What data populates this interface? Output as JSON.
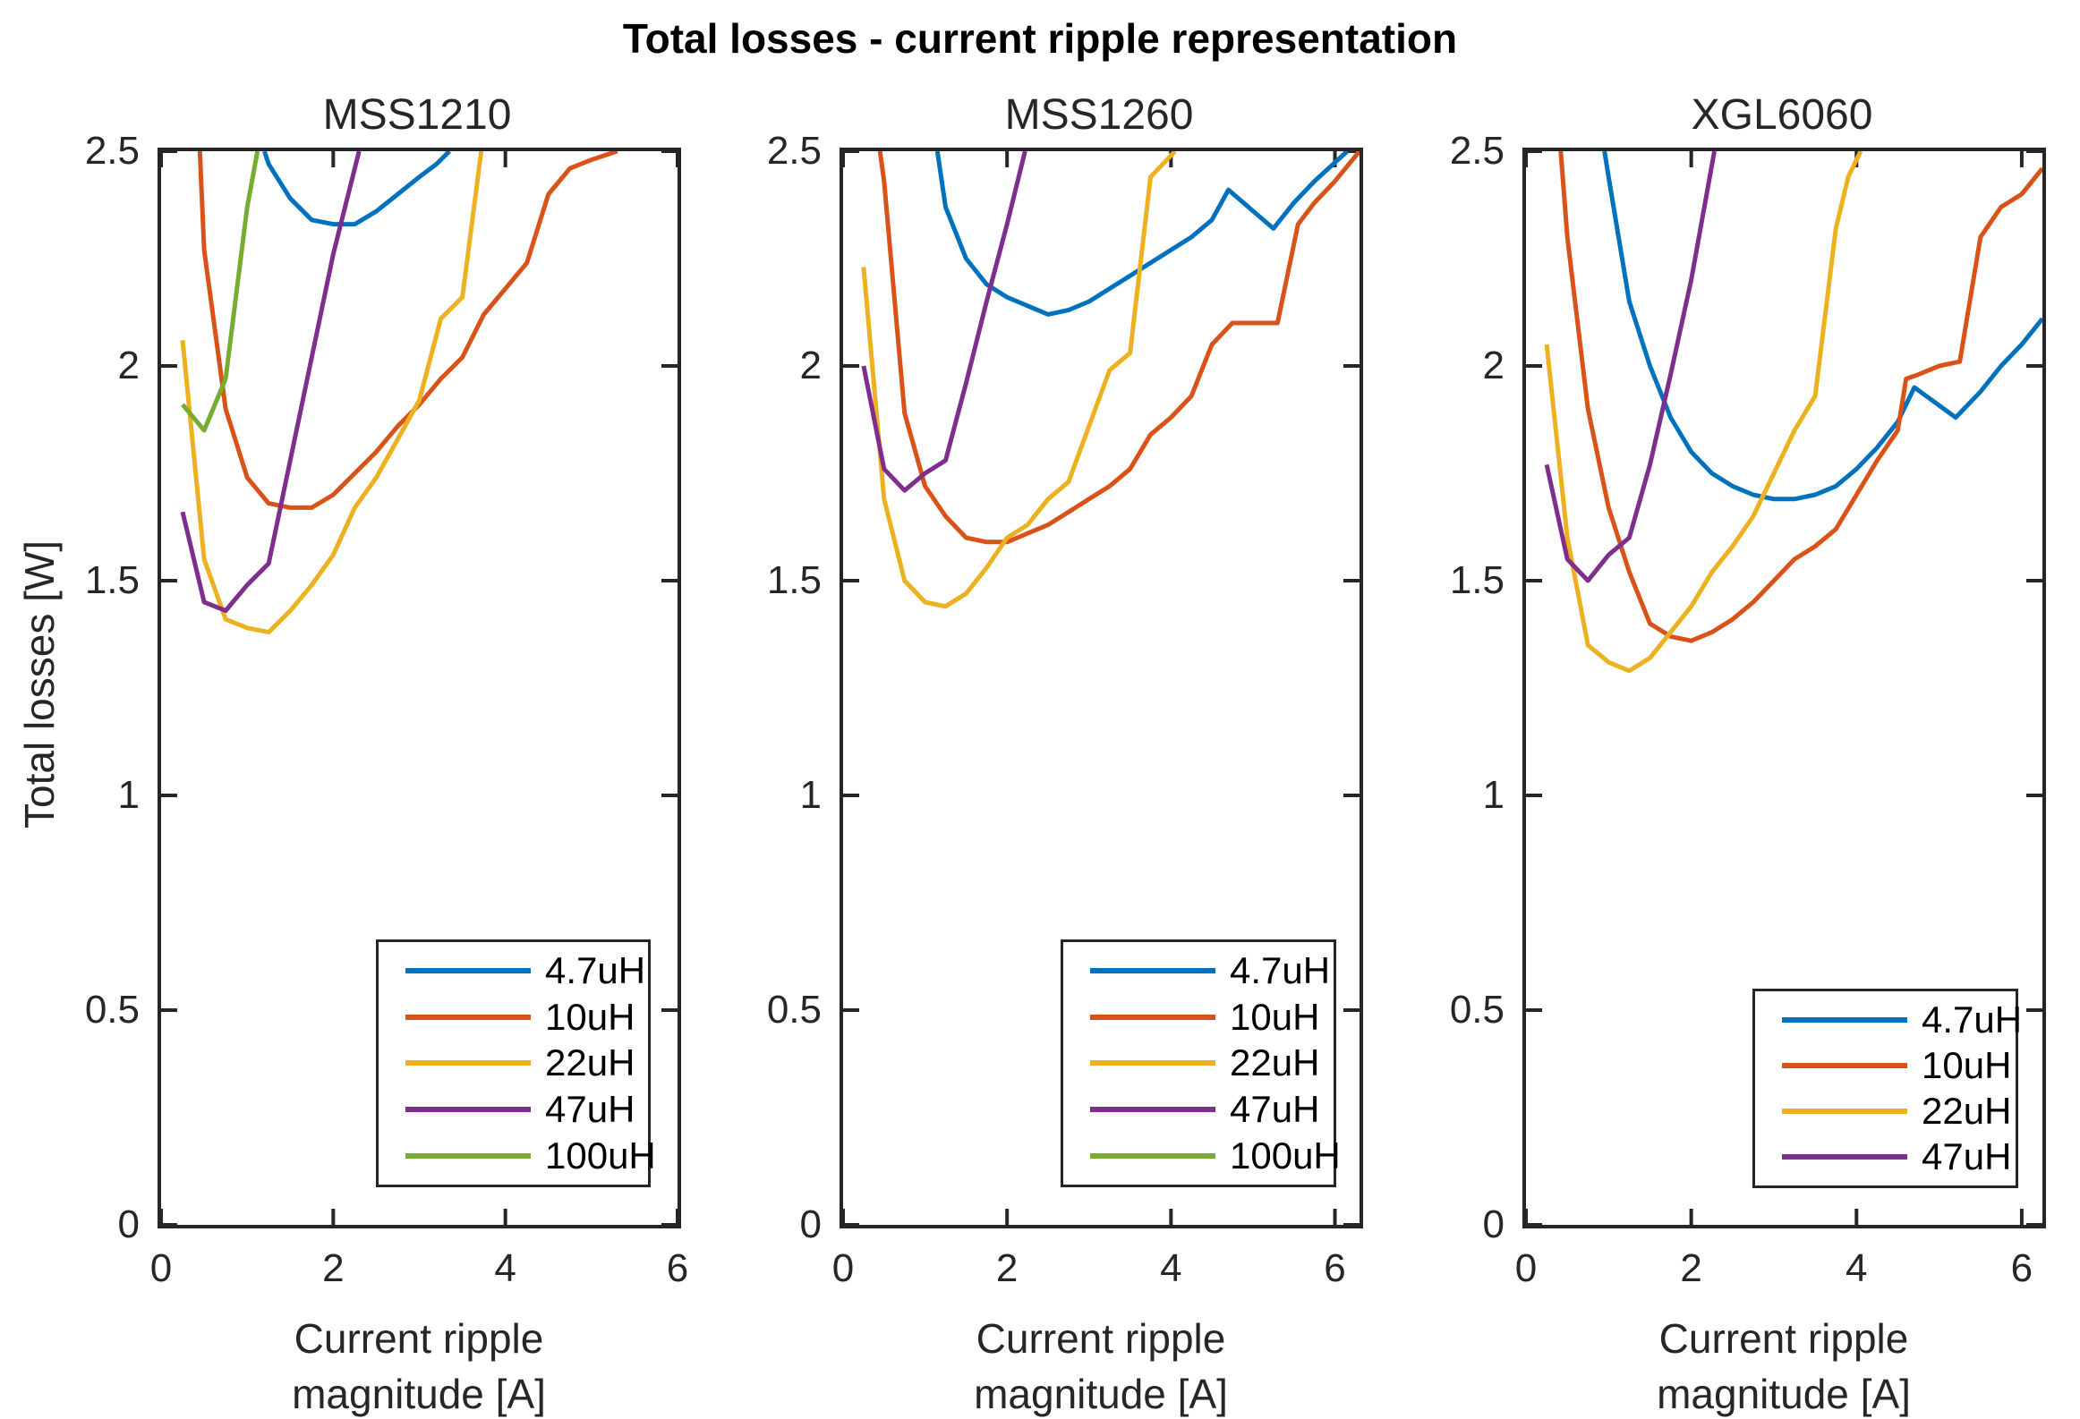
{
  "figure": {
    "title": "Total losses - current ripple representation"
  },
  "axes": {
    "ylabel": "Total losses [W]",
    "xlabel_line1": "Current ripple",
    "xlabel_line2": "magnitude [A]",
    "xticks": [
      [
        0,
        "0"
      ],
      [
        2,
        "2"
      ],
      [
        4,
        "4"
      ],
      [
        6,
        "6"
      ]
    ],
    "yticks": [
      [
        0,
        "0"
      ],
      [
        0.5,
        "0.5"
      ],
      [
        1,
        "1"
      ],
      [
        1.5,
        "1.5"
      ],
      [
        2,
        "2"
      ],
      [
        2.5,
        "2.5"
      ]
    ]
  },
  "colors": {
    "4.7uH": "#0072BD",
    "10uH": "#D95319",
    "22uH": "#EDB120",
    "47uH": "#7E2F8E",
    "100uH": "#77AC30",
    "axis": "#262626"
  },
  "chart_data": [
    {
      "type": "line",
      "title": "MSS1210",
      "xlim": [
        0,
        6
      ],
      "ylim": [
        0,
        2.5
      ],
      "grid": false,
      "legend_position": "lower-right-inside",
      "legend": [
        "4.7uH",
        "10uH",
        "22uH",
        "47uH",
        "100uH"
      ],
      "series": [
        {
          "name": "4.7uH",
          "points": [
            [
              1.2,
              2.5
            ],
            [
              1.25,
              2.47
            ],
            [
              1.5,
              2.39
            ],
            [
              1.75,
              2.34
            ],
            [
              2,
              2.33
            ],
            [
              2.25,
              2.33
            ],
            [
              2.5,
              2.36
            ],
            [
              2.75,
              2.4
            ],
            [
              3,
              2.44
            ],
            [
              3.2,
              2.47
            ],
            [
              3.35,
              2.5
            ]
          ]
        },
        {
          "name": "10uH",
          "points": [
            [
              0.45,
              2.5
            ],
            [
              0.5,
              2.27
            ],
            [
              0.75,
              1.9
            ],
            [
              1,
              1.74
            ],
            [
              1.25,
              1.68
            ],
            [
              1.5,
              1.67
            ],
            [
              1.75,
              1.67
            ],
            [
              2,
              1.7
            ],
            [
              2.25,
              1.75
            ],
            [
              2.5,
              1.8
            ],
            [
              2.75,
              1.86
            ],
            [
              3,
              1.91
            ],
            [
              3.25,
              1.97
            ],
            [
              3.5,
              2.02
            ],
            [
              3.75,
              2.12
            ],
            [
              4,
              2.18
            ],
            [
              4.25,
              2.24
            ],
            [
              4.5,
              2.4
            ],
            [
              4.75,
              2.46
            ],
            [
              5,
              2.48
            ],
            [
              5.3,
              2.5
            ]
          ]
        },
        {
          "name": "22uH",
          "points": [
            [
              0.25,
              2.06
            ],
            [
              0.5,
              1.55
            ],
            [
              0.75,
              1.41
            ],
            [
              1,
              1.39
            ],
            [
              1.25,
              1.38
            ],
            [
              1.5,
              1.43
            ],
            [
              1.75,
              1.49
            ],
            [
              2,
              1.56
            ],
            [
              2.25,
              1.67
            ],
            [
              2.5,
              1.74
            ],
            [
              2.75,
              1.83
            ],
            [
              3,
              1.92
            ],
            [
              3.25,
              2.11
            ],
            [
              3.5,
              2.16
            ],
            [
              3.72,
              2.5
            ]
          ]
        },
        {
          "name": "47uH",
          "points": [
            [
              0.25,
              1.66
            ],
            [
              0.5,
              1.45
            ],
            [
              0.75,
              1.43
            ],
            [
              1,
              1.49
            ],
            [
              1.25,
              1.54
            ],
            [
              1.5,
              1.78
            ],
            [
              1.75,
              2.02
            ],
            [
              2,
              2.26
            ],
            [
              2.3,
              2.5
            ]
          ]
        },
        {
          "name": "100uH",
          "points": [
            [
              0.25,
              1.91
            ],
            [
              0.5,
              1.85
            ],
            [
              0.75,
              1.97
            ],
            [
              1,
              2.37
            ],
            [
              1.12,
              2.5
            ]
          ]
        }
      ]
    },
    {
      "type": "line",
      "title": "MSS1260",
      "xlim": [
        0,
        6.3
      ],
      "ylim": [
        0,
        2.5
      ],
      "grid": false,
      "legend_position": "lower-right-inside",
      "legend": [
        "4.7uH",
        "10uH",
        "22uH",
        "47uH",
        "100uH"
      ],
      "series": [
        {
          "name": "4.7uH",
          "points": [
            [
              1.15,
              2.5
            ],
            [
              1.25,
              2.37
            ],
            [
              1.5,
              2.25
            ],
            [
              1.75,
              2.19
            ],
            [
              2,
              2.16
            ],
            [
              2.25,
              2.14
            ],
            [
              2.5,
              2.12
            ],
            [
              2.75,
              2.13
            ],
            [
              3,
              2.15
            ],
            [
              3.25,
              2.18
            ],
            [
              3.5,
              2.21
            ],
            [
              3.75,
              2.24
            ],
            [
              4,
              2.27
            ],
            [
              4.25,
              2.3
            ],
            [
              4.5,
              2.34
            ],
            [
              4.7,
              2.41
            ],
            [
              5.25,
              2.32
            ],
            [
              5.5,
              2.38
            ],
            [
              5.75,
              2.43
            ],
            [
              6.15,
              2.5
            ]
          ]
        },
        {
          "name": "10uH",
          "points": [
            [
              0.45,
              2.5
            ],
            [
              0.5,
              2.43
            ],
            [
              0.75,
              1.89
            ],
            [
              1,
              1.72
            ],
            [
              1.25,
              1.65
            ],
            [
              1.5,
              1.6
            ],
            [
              1.75,
              1.59
            ],
            [
              2,
              1.59
            ],
            [
              2.25,
              1.61
            ],
            [
              2.5,
              1.63
            ],
            [
              2.75,
              1.66
            ],
            [
              3,
              1.69
            ],
            [
              3.25,
              1.72
            ],
            [
              3.5,
              1.76
            ],
            [
              3.75,
              1.84
            ],
            [
              4,
              1.88
            ],
            [
              4.25,
              1.93
            ],
            [
              4.5,
              2.05
            ],
            [
              4.75,
              2.1
            ],
            [
              5.3,
              2.1
            ],
            [
              5.55,
              2.33
            ],
            [
              5.75,
              2.38
            ],
            [
              6,
              2.43
            ],
            [
              6.3,
              2.5
            ]
          ]
        },
        {
          "name": "22uH",
          "points": [
            [
              0.25,
              2.23
            ],
            [
              0.5,
              1.69
            ],
            [
              0.75,
              1.5
            ],
            [
              1,
              1.45
            ],
            [
              1.25,
              1.44
            ],
            [
              1.5,
              1.47
            ],
            [
              1.75,
              1.53
            ],
            [
              2,
              1.6
            ],
            [
              2.25,
              1.63
            ],
            [
              2.5,
              1.69
            ],
            [
              2.75,
              1.73
            ],
            [
              3,
              1.86
            ],
            [
              3.25,
              1.99
            ],
            [
              3.5,
              2.03
            ],
            [
              3.75,
              2.44
            ],
            [
              4.05,
              2.5
            ]
          ]
        },
        {
          "name": "47uH",
          "points": [
            [
              0.25,
              2.0
            ],
            [
              0.5,
              1.76
            ],
            [
              0.75,
              1.71
            ],
            [
              1,
              1.75
            ],
            [
              1.25,
              1.78
            ],
            [
              1.5,
              1.96
            ],
            [
              1.75,
              2.15
            ],
            [
              2,
              2.33
            ],
            [
              2.22,
              2.5
            ]
          ]
        },
        {
          "name": "100uH",
          "points": []
        }
      ]
    },
    {
      "type": "line",
      "title": "XGL6060",
      "xlim": [
        0,
        6.25
      ],
      "ylim": [
        0,
        2.5
      ],
      "grid": false,
      "legend_position": "lower-right-inside",
      "legend": [
        "4.7uH",
        "10uH",
        "22uH",
        "47uH"
      ],
      "series": [
        {
          "name": "4.7uH",
          "points": [
            [
              0.95,
              2.5
            ],
            [
              1,
              2.44
            ],
            [
              1.25,
              2.15
            ],
            [
              1.5,
              2.0
            ],
            [
              1.75,
              1.88
            ],
            [
              2,
              1.8
            ],
            [
              2.25,
              1.75
            ],
            [
              2.5,
              1.72
            ],
            [
              2.75,
              1.7
            ],
            [
              3,
              1.69
            ],
            [
              3.25,
              1.69
            ],
            [
              3.5,
              1.7
            ],
            [
              3.75,
              1.72
            ],
            [
              4,
              1.76
            ],
            [
              4.25,
              1.81
            ],
            [
              4.5,
              1.87
            ],
            [
              4.7,
              1.95
            ],
            [
              5.2,
              1.88
            ],
            [
              5.5,
              1.94
            ],
            [
              5.75,
              2.0
            ],
            [
              6,
              2.05
            ],
            [
              6.25,
              2.11
            ]
          ]
        },
        {
          "name": "10uH",
          "points": [
            [
              0.42,
              2.5
            ],
            [
              0.5,
              2.3
            ],
            [
              0.75,
              1.9
            ],
            [
              1,
              1.67
            ],
            [
              1.25,
              1.52
            ],
            [
              1.5,
              1.4
            ],
            [
              1.75,
              1.37
            ],
            [
              2,
              1.36
            ],
            [
              2.25,
              1.38
            ],
            [
              2.5,
              1.41
            ],
            [
              2.75,
              1.45
            ],
            [
              3,
              1.5
            ],
            [
              3.25,
              1.55
            ],
            [
              3.5,
              1.58
            ],
            [
              3.75,
              1.62
            ],
            [
              4,
              1.7
            ],
            [
              4.25,
              1.78
            ],
            [
              4.5,
              1.85
            ],
            [
              4.6,
              1.97
            ],
            [
              4.75,
              1.98
            ],
            [
              5,
              2.0
            ],
            [
              5.25,
              2.01
            ],
            [
              5.5,
              2.3
            ],
            [
              5.75,
              2.37
            ],
            [
              6,
              2.4
            ],
            [
              6.25,
              2.46
            ]
          ]
        },
        {
          "name": "22uH",
          "points": [
            [
              0.25,
              2.05
            ],
            [
              0.5,
              1.6
            ],
            [
              0.75,
              1.35
            ],
            [
              1,
              1.31
            ],
            [
              1.25,
              1.29
            ],
            [
              1.5,
              1.32
            ],
            [
              1.75,
              1.38
            ],
            [
              2,
              1.44
            ],
            [
              2.25,
              1.52
            ],
            [
              2.5,
              1.58
            ],
            [
              2.75,
              1.65
            ],
            [
              3,
              1.75
            ],
            [
              3.25,
              1.85
            ],
            [
              3.5,
              1.93
            ],
            [
              3.75,
              2.32
            ],
            [
              3.9,
              2.44
            ],
            [
              4.05,
              2.5
            ]
          ]
        },
        {
          "name": "47uH",
          "points": [
            [
              0.25,
              1.77
            ],
            [
              0.5,
              1.55
            ],
            [
              0.75,
              1.5
            ],
            [
              1,
              1.56
            ],
            [
              1.25,
              1.6
            ],
            [
              1.5,
              1.77
            ],
            [
              1.75,
              1.98
            ],
            [
              2,
              2.2
            ],
            [
              2.28,
              2.5
            ]
          ]
        }
      ]
    }
  ]
}
